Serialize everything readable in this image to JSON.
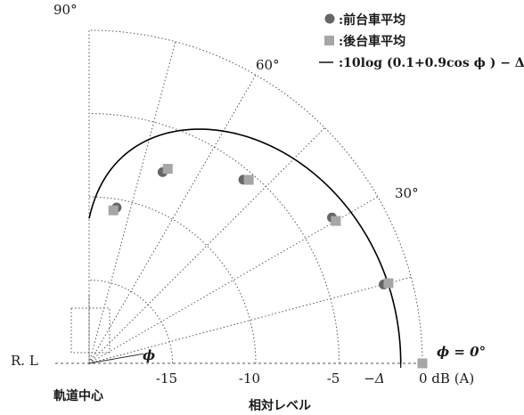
{
  "chart_data": {
    "type": "scatter",
    "coordinate_system": "polar",
    "radial_unit": "dB",
    "radial_range": [
      -20,
      0
    ],
    "radial_ticks": [
      "-15",
      "-10",
      "-5",
      "0 dB (A)"
    ],
    "radial_tick_values": [
      -15,
      -10,
      -5,
      0
    ],
    "delta_label": "−Δ",
    "delta_value": -1.3,
    "angle_range_deg": [
      0,
      90
    ],
    "angle_labels": [
      "90°",
      "60°",
      "30°"
    ],
    "angle_label_values": [
      90,
      60,
      30
    ],
    "grid": true,
    "xlabel": "相対レベル",
    "zero_angle_label": "ϕ = 0°",
    "phi_label": "ϕ",
    "rl_label": "R. L",
    "track_center_label": "軌道中心",
    "legend_position": "top-right",
    "legend": [
      {
        "marker": "●",
        "text": ":前台車平均"
      },
      {
        "marker": "■",
        "text": ":後台車平均"
      },
      {
        "marker": "—",
        "text": ":10log (0.1+0.9cos ϕ ) − Δ"
      }
    ],
    "series": [
      {
        "name": "前台車平均",
        "marker": "circle",
        "color": "#666666",
        "points": [
          {
            "angle": 0,
            "level": 0.0
          },
          {
            "angle": 15,
            "level": -1.7
          },
          {
            "angle": 31,
            "level": -3.0
          },
          {
            "angle": 50,
            "level": -5.6
          },
          {
            "angle": 69,
            "level": -7.7
          },
          {
            "angle": 80,
            "level": -10.5
          }
        ]
      },
      {
        "name": "後台車平均",
        "marker": "square",
        "color": "#a6a6a6",
        "points": [
          {
            "angle": 0,
            "level": 0.0
          },
          {
            "angle": 15,
            "level": -1.4
          },
          {
            "angle": 30,
            "level": -2.9
          },
          {
            "angle": 49,
            "level": -5.4
          },
          {
            "angle": 68,
            "level": -7.4
          },
          {
            "angle": 81,
            "level": -10.7
          }
        ]
      }
    ],
    "curve": {
      "formula": "10log (0.1+0.9cos ϕ ) − Δ",
      "a": 0.1,
      "b": 0.9,
      "delta": -1.3
    }
  }
}
